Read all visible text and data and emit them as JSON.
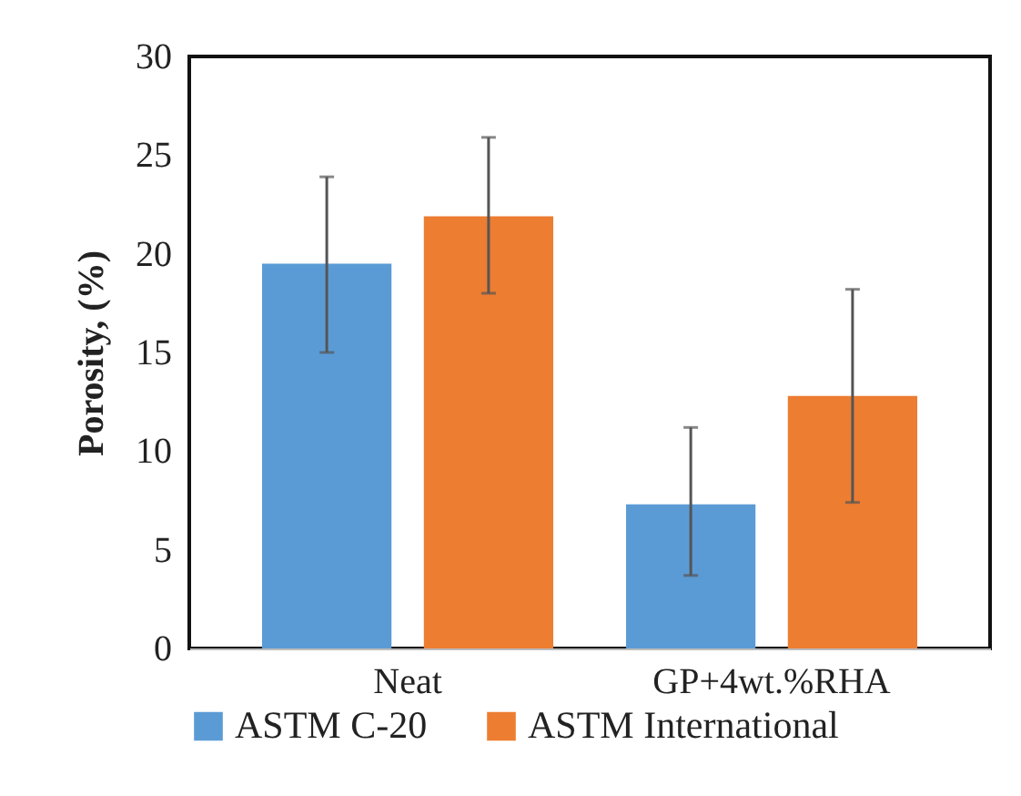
{
  "chart_data": {
    "type": "bar",
    "ylabel": "Porosity, (%)",
    "categories": [
      "Neat",
      "GP+4wt.%RHA"
    ],
    "series": [
      {
        "name": "ASTM C-20",
        "color": "#5b9bd5",
        "values": [
          19.5,
          7.3
        ],
        "errors": [
          [
            15.0,
            23.9
          ],
          [
            3.7,
            11.2
          ]
        ]
      },
      {
        "name": "ASTM International",
        "color": "#ed7d31",
        "values": [
          21.9,
          12.8
        ],
        "errors": [
          [
            18.0,
            25.9
          ],
          [
            7.4,
            18.2
          ]
        ]
      }
    ],
    "ylim": [
      0,
      30
    ],
    "yticks": [
      0,
      5,
      10,
      15,
      20,
      25,
      30
    ],
    "grid": false,
    "legend": "bottom"
  }
}
